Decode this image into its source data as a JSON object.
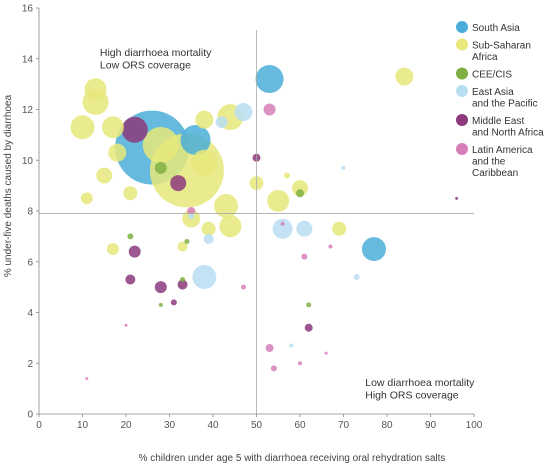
{
  "chart_data": {
    "type": "scatter",
    "xlabel": "% children under age 5 with diarrhoea receiving oral rehydration salts",
    "ylabel": "% under-five deaths caused by diarrhoea",
    "xlim": [
      0,
      100
    ],
    "ylim": [
      0,
      16
    ],
    "xticks": [
      "0",
      "10",
      "20",
      "30",
      "40",
      "50",
      "60",
      "70",
      "80",
      "90",
      "100"
    ],
    "yticks": [
      "0",
      "2",
      "4",
      "6",
      "8",
      "10",
      "12",
      "14",
      "16"
    ],
    "reference_lines": {
      "x": 50,
      "y": 7.9
    },
    "annotations": [
      {
        "lines": [
          "High diarrhoea mortality",
          "Low ORS coverage"
        ],
        "x": 14,
        "y": 14.1
      },
      {
        "lines": [
          "Low diarrhoea mortality",
          "High ORS coverage"
        ],
        "x": 75,
        "y": 1.1
      }
    ],
    "legend": [
      {
        "key": "south_asia",
        "lines": [
          "South Asia"
        ]
      },
      {
        "key": "ssa",
        "lines": [
          "Sub-Saharan",
          "Africa"
        ]
      },
      {
        "key": "cee",
        "lines": [
          "CEE/CIS"
        ]
      },
      {
        "key": "eap",
        "lines": [
          "East Asia",
          "and the Pacific"
        ]
      },
      {
        "key": "mena",
        "lines": [
          "Middle East",
          "and North Africa"
        ]
      },
      {
        "key": "lac",
        "lines": [
          "Latin America",
          "and the",
          "Caribbean"
        ]
      }
    ],
    "colors": {
      "south_asia": "#4aaed8",
      "ssa": "#e6e87a",
      "cee": "#7fb043",
      "eap": "#b8def3",
      "mena": "#8c3a7c",
      "lac": "#d67fb8",
      "grid_line": "#aaaaaa"
    },
    "series": [
      {
        "region": "south_asia",
        "points": [
          {
            "x": 26,
            "y": 10.5,
            "r": 37
          },
          {
            "x": 53,
            "y": 13.2,
            "r": 14
          },
          {
            "x": 77,
            "y": 6.5,
            "r": 12
          },
          {
            "x": 36,
            "y": 10.8,
            "r": 15
          }
        ]
      },
      {
        "region": "ssa",
        "points": [
          {
            "x": 34,
            "y": 9.6,
            "r": 37
          },
          {
            "x": 28,
            "y": 10.6,
            "r": 18
          },
          {
            "x": 38,
            "y": 9.9,
            "r": 13
          },
          {
            "x": 13,
            "y": 12.8,
            "r": 11
          },
          {
            "x": 13,
            "y": 12.3,
            "r": 13
          },
          {
            "x": 10,
            "y": 11.3,
            "r": 12
          },
          {
            "x": 17,
            "y": 11.3,
            "r": 11
          },
          {
            "x": 38,
            "y": 11.6,
            "r": 9
          },
          {
            "x": 44,
            "y": 11.7,
            "r": 13
          },
          {
            "x": 18,
            "y": 10.3,
            "r": 9
          },
          {
            "x": 15,
            "y": 9.4,
            "r": 8
          },
          {
            "x": 21,
            "y": 8.7,
            "r": 7
          },
          {
            "x": 11,
            "y": 8.5,
            "r": 6
          },
          {
            "x": 43,
            "y": 8.2,
            "r": 12
          },
          {
            "x": 44,
            "y": 7.4,
            "r": 11
          },
          {
            "x": 35,
            "y": 7.7,
            "r": 9
          },
          {
            "x": 39,
            "y": 7.3,
            "r": 7
          },
          {
            "x": 55,
            "y": 8.4,
            "r": 11
          },
          {
            "x": 60,
            "y": 8.9,
            "r": 8
          },
          {
            "x": 50,
            "y": 9.1,
            "r": 7
          },
          {
            "x": 84,
            "y": 13.3,
            "r": 9
          },
          {
            "x": 69,
            "y": 7.3,
            "r": 7
          },
          {
            "x": 17,
            "y": 6.5,
            "r": 6
          },
          {
            "x": 33,
            "y": 6.6,
            "r": 5
          },
          {
            "x": 57,
            "y": 9.4,
            "r": 3
          }
        ]
      },
      {
        "region": "cee",
        "points": [
          {
            "x": 28,
            "y": 9.7,
            "r": 6
          },
          {
            "x": 60,
            "y": 8.7,
            "r": 4
          },
          {
            "x": 21,
            "y": 7.0,
            "r": 3
          },
          {
            "x": 34,
            "y": 6.8,
            "r": 2.5
          },
          {
            "x": 33,
            "y": 5.3,
            "r": 2.5
          },
          {
            "x": 62,
            "y": 4.3,
            "r": 2.5
          },
          {
            "x": 28,
            "y": 4.3,
            "r": 2
          }
        ]
      },
      {
        "region": "eap",
        "points": [
          {
            "x": 47,
            "y": 11.9,
            "r": 9
          },
          {
            "x": 42,
            "y": 11.5,
            "r": 6
          },
          {
            "x": 38,
            "y": 5.4,
            "r": 12
          },
          {
            "x": 39,
            "y": 6.9,
            "r": 5
          },
          {
            "x": 56,
            "y": 7.3,
            "r": 10
          },
          {
            "x": 61,
            "y": 7.3,
            "r": 8
          },
          {
            "x": 73,
            "y": 5.4,
            "r": 3
          },
          {
            "x": 70,
            "y": 9.7,
            "r": 2
          },
          {
            "x": 58,
            "y": 2.7,
            "r": 2
          },
          {
            "x": 35,
            "y": 7.8,
            "r": 3
          }
        ]
      },
      {
        "region": "mena",
        "points": [
          {
            "x": 22,
            "y": 11.2,
            "r": 13
          },
          {
            "x": 32,
            "y": 9.1,
            "r": 8
          },
          {
            "x": 22,
            "y": 6.4,
            "r": 6
          },
          {
            "x": 21,
            "y": 5.3,
            "r": 5
          },
          {
            "x": 28,
            "y": 5.0,
            "r": 6
          },
          {
            "x": 33,
            "y": 5.1,
            "r": 5
          },
          {
            "x": 62,
            "y": 3.4,
            "r": 4
          },
          {
            "x": 50,
            "y": 10.1,
            "r": 4
          },
          {
            "x": 31,
            "y": 4.4,
            "r": 3
          },
          {
            "x": 96,
            "y": 8.5,
            "r": 1.5
          }
        ]
      },
      {
        "region": "lac",
        "points": [
          {
            "x": 53,
            "y": 12.0,
            "r": 6
          },
          {
            "x": 35,
            "y": 8.0,
            "r": 4
          },
          {
            "x": 53,
            "y": 2.6,
            "r": 4
          },
          {
            "x": 54,
            "y": 1.8,
            "r": 3
          },
          {
            "x": 61,
            "y": 6.2,
            "r": 3
          },
          {
            "x": 67,
            "y": 6.6,
            "r": 2
          },
          {
            "x": 47,
            "y": 5.0,
            "r": 2.5
          },
          {
            "x": 60,
            "y": 2.0,
            "r": 2
          },
          {
            "x": 56,
            "y": 7.5,
            "r": 2
          },
          {
            "x": 20,
            "y": 3.5,
            "r": 1.5
          },
          {
            "x": 11,
            "y": 1.4,
            "r": 1.5
          },
          {
            "x": 66,
            "y": 2.4,
            "r": 1.5
          }
        ]
      }
    ]
  }
}
